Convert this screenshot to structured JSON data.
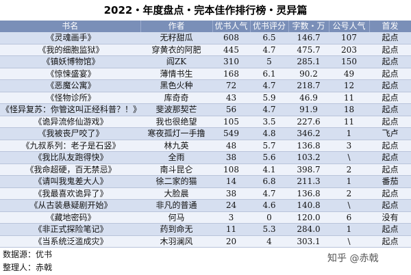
{
  "title": "2022・年度盘点・完本佳作排行榜・灵异篇",
  "table": {
    "headers": [
      "书名",
      "作者",
      "优书人气",
      "优书评分",
      "字数・万",
      "公号人气",
      "首发"
    ],
    "rows": [
      [
        "《灵魂画手》",
        "无籽甜瓜",
        "608",
        "6.5",
        "146.7",
        "107",
        "起点"
      ],
      [
        "《我的细胞监狱》",
        "穿黄衣的阿肥",
        "445",
        "4.7",
        "475.7",
        "203",
        "起点"
      ],
      [
        "《镇妖博物馆》",
        "阎ZK",
        "310",
        "5",
        "285.1",
        "150",
        "起点"
      ],
      [
        "《惊悚盛宴》",
        "薄情书生",
        "168",
        "6.1",
        "90.2",
        "49",
        "起点"
      ],
      [
        "《恶魔公寓》",
        "黑色火种",
        "72",
        "4.7",
        "218.7",
        "12",
        "起点"
      ],
      [
        "《怪物诊所》",
        "库奇奇",
        "43",
        "5.9",
        "46.9",
        "11",
        "起点"
      ],
      [
        "《怪异复苏：你管这叫正经科普？！》",
        "斐波那契芒",
        "56",
        "4.7",
        "91.9",
        "18",
        "起点"
      ],
      [
        "《诡异流修仙游戏》",
        "我也很绝望",
        "105",
        "3.5",
        "227.6",
        "11",
        "起点"
      ],
      [
        "《我被丧尸咬了》",
        "寒夜孤灯一手撸",
        "549",
        "4.8",
        "346.2",
        "1",
        "飞卢"
      ],
      [
        "《九叔系列：老子是石竖》",
        "林九英",
        "48",
        "5.7",
        "136.8",
        "3",
        "起点"
      ],
      [
        "《我比队友跑得快》",
        "全雨",
        "38",
        "5.6",
        "103.2",
        "\\",
        "起点"
      ],
      [
        "《我命超硬，百无禁忌》",
        "南斗昆仑",
        "108",
        "4.1",
        "398.7",
        "2",
        "起点"
      ],
      [
        "《请叫我鬼差大人》",
        "徐二家的猫",
        "14",
        "6.8",
        "211.3",
        "1",
        "番茄"
      ],
      [
        "《我最喜欢诡异了》",
        "大脸晨",
        "38",
        "4.7",
        "136.8",
        "2",
        "起点"
      ],
      [
        "《从古装悬疑剧开始》",
        "非凡的普通",
        "24",
        "4.6",
        "140.8",
        "\\",
        "起点"
      ],
      [
        "《藏地密码》",
        "何马",
        "3",
        "0",
        "120.0",
        "6",
        "没有"
      ],
      [
        "《非正式探险笔记》",
        "药到命无",
        "11",
        "5.3",
        "284.0",
        "1",
        "起点"
      ],
      [
        "《当系统泛滥成灾》",
        "木羽澜风",
        "20",
        "4",
        "303.1",
        "\\",
        "起点"
      ]
    ]
  },
  "footer": {
    "source": "数据源：优书",
    "compiler": "整理人：赤戟"
  },
  "watermark": "知乎 @赤戟"
}
